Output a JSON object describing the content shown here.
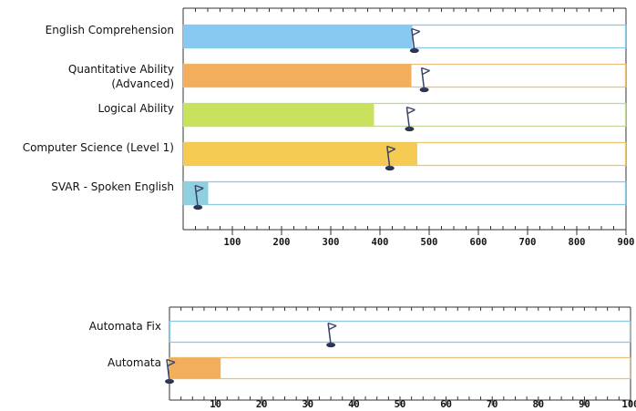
{
  "chart_data": [
    {
      "type": "bar",
      "orientation": "horizontal",
      "categories": [
        "English Comprehension",
        "Quantitative Ability (Advanced)",
        "Logical Ability",
        "Computer Science (Level 1)",
        "SVAR - Spoken English"
      ],
      "values": [
        465,
        463,
        387,
        475,
        50
      ],
      "markers": [
        470,
        490,
        460,
        420,
        30
      ],
      "xlim": [
        0,
        900
      ],
      "xticks": [
        "100",
        "200",
        "300",
        "400",
        "500",
        "600",
        "700",
        "800",
        "900"
      ],
      "tick_values": [
        100,
        200,
        300,
        400,
        500,
        600,
        700,
        800,
        900
      ],
      "grid": false,
      "colors": {
        "fills": [
          "#88c9f2",
          "#f3ae5c",
          "#c9e25d",
          "#f6cb54",
          "#8ed0e0"
        ],
        "outlines": [
          "#8cc7e4",
          "#e8c07a",
          "#c2d69a",
          "#e8c86a",
          "#8cc7e4"
        ]
      }
    },
    {
      "type": "bar",
      "orientation": "horizontal",
      "categories": [
        "Automata Fix",
        "Automata"
      ],
      "values": [
        0,
        11
      ],
      "markers": [
        35,
        0
      ],
      "xlim": [
        0,
        100
      ],
      "xticks": [
        "10",
        "20",
        "30",
        "40",
        "50",
        "60",
        "70",
        "80",
        "90",
        "100"
      ],
      "tick_values": [
        10,
        20,
        30,
        40,
        50,
        60,
        70,
        80,
        90,
        100
      ],
      "grid": false,
      "colors": {
        "fills": [
          "#88c9f2",
          "#f3ae5c"
        ],
        "outlines": [
          "#8cc7e4",
          "#e8c07a"
        ]
      }
    }
  ]
}
